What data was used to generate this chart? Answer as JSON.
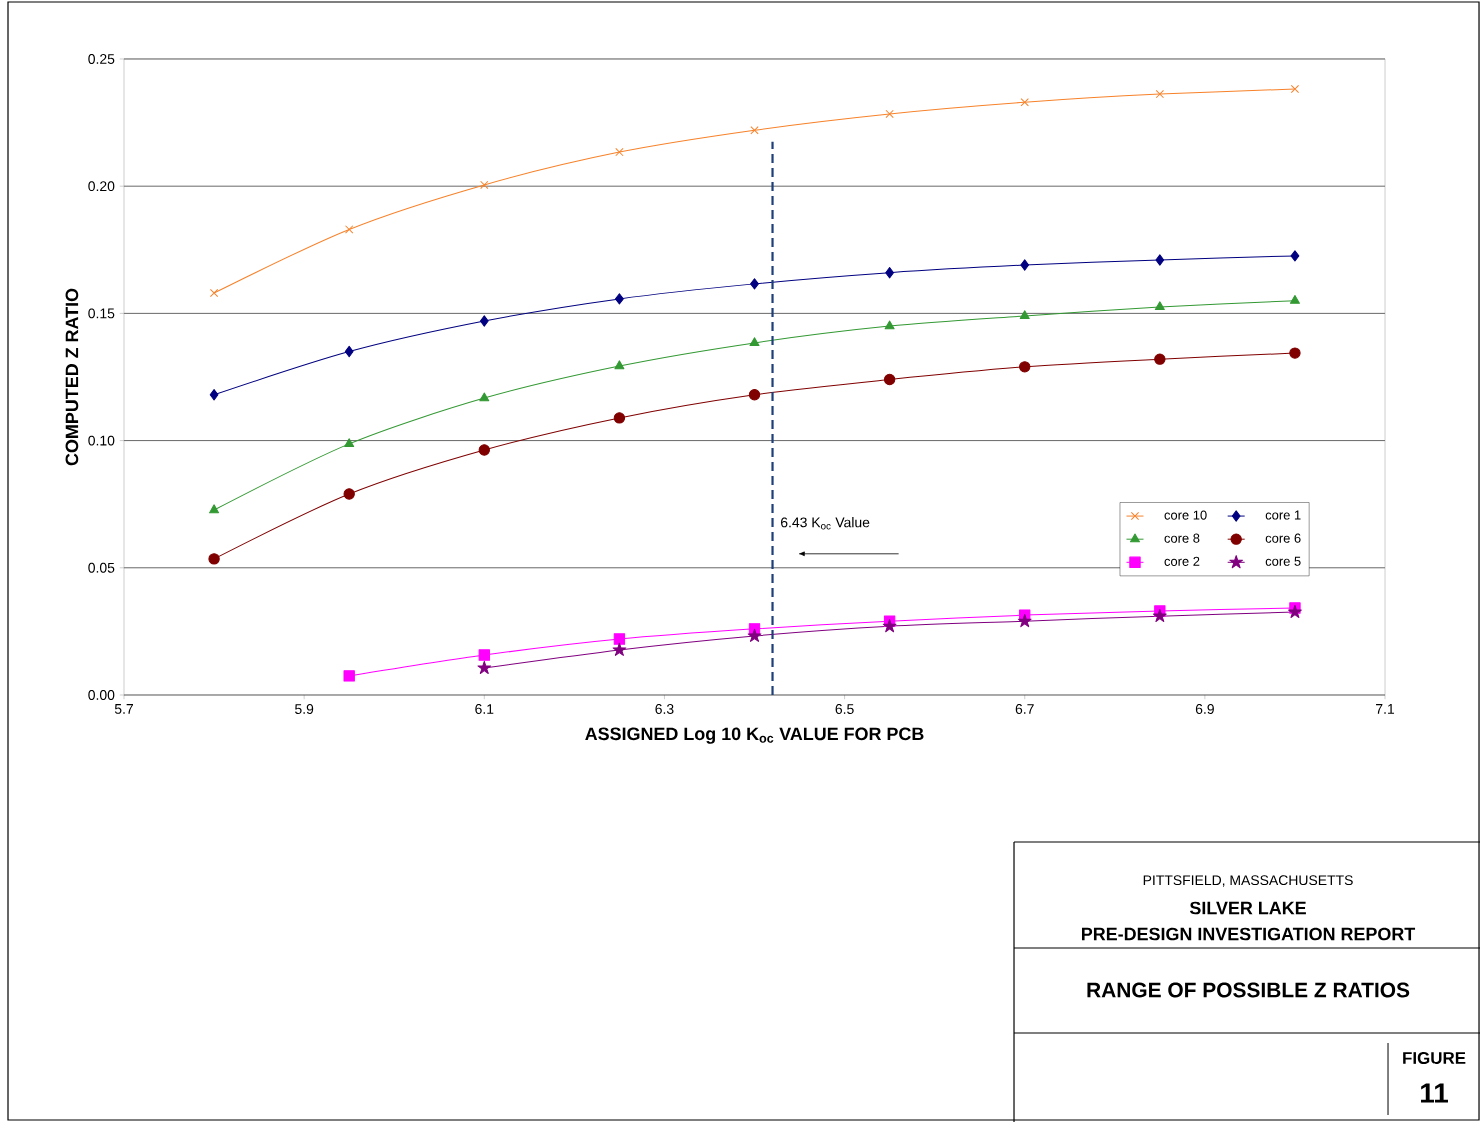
{
  "chart_data": {
    "type": "line",
    "xlabel": "ASSIGNED Log 10 K$_{oc}$ VALUE FOR PCB",
    "ylabel": "COMPUTED Z RATIO",
    "x": [
      5.8,
      5.95,
      6.1,
      6.25,
      6.4,
      6.55,
      6.7,
      6.85,
      7.0
    ],
    "series": [
      {
        "name": "core 10",
        "color": "#f7822a",
        "marker": "cross",
        "values": [
          0.158,
          0.183,
          0.2005,
          0.2134,
          0.222,
          0.2284,
          0.233,
          0.2362,
          0.2382
        ]
      },
      {
        "name": "core 1",
        "color": "#000080",
        "marker": "diamond",
        "values": [
          0.118,
          0.135,
          0.147,
          0.1557,
          0.1616,
          0.166,
          0.169,
          0.171,
          0.1726
        ]
      },
      {
        "name": "core 8",
        "color": "#339933",
        "marker": "triangle",
        "values": [
          0.0727,
          0.0987,
          0.1167,
          0.1293,
          0.1384,
          0.145,
          0.149,
          0.1525,
          0.155
        ]
      },
      {
        "name": "core 6",
        "color": "#800000",
        "marker": "circle",
        "values": [
          0.0535,
          0.079,
          0.0963,
          0.1089,
          0.118,
          0.124,
          0.129,
          0.132,
          0.1344
        ]
      },
      {
        "name": "core 2",
        "color": "#ff00ff",
        "marker": "square",
        "values": [
          null,
          0.0075,
          0.0157,
          0.022,
          0.026,
          0.029,
          0.0314,
          0.033,
          0.0342
        ]
      },
      {
        "name": "core 5",
        "color": "#800080",
        "marker": "star",
        "values": [
          null,
          null,
          0.0106,
          0.0177,
          0.0232,
          0.027,
          0.029,
          0.031,
          0.0326
        ]
      }
    ],
    "xlim": [
      5.7,
      7.1
    ],
    "xticks": [
      5.7,
      5.9,
      6.1,
      6.3,
      6.5,
      6.7,
      6.9,
      7.1
    ],
    "ylim": [
      0,
      0.25
    ],
    "yticks": [
      {
        "value": 0,
        "label": "0.00"
      },
      {
        "value": 0.05,
        "label": "0.05"
      },
      {
        "value": 0.1,
        "label": "0.10"
      },
      {
        "value": 0.15,
        "label": "0.15"
      },
      {
        "value": 0.2,
        "label": "0.20"
      },
      {
        "value": 0.25,
        "label": "0.25"
      }
    ],
    "grid": "y",
    "legend": "bottom right",
    "ref_lines": [
      {
        "axis": "x",
        "value": 6.42,
        "label": "6.43 K$_{oc}$ Value",
        "color": "#1f3f7a",
        "line_style": "dashed"
      }
    ],
    "annotations": [
      "PITTSFIELD, MASSACHUSETTS",
      "SILVER LAKE",
      "PRE-DESIGN INVESTIGATION REPORT",
      "RANGE OF POSSIBLE Z RATIOS",
      "FIGURE",
      "11"
    ]
  }
}
